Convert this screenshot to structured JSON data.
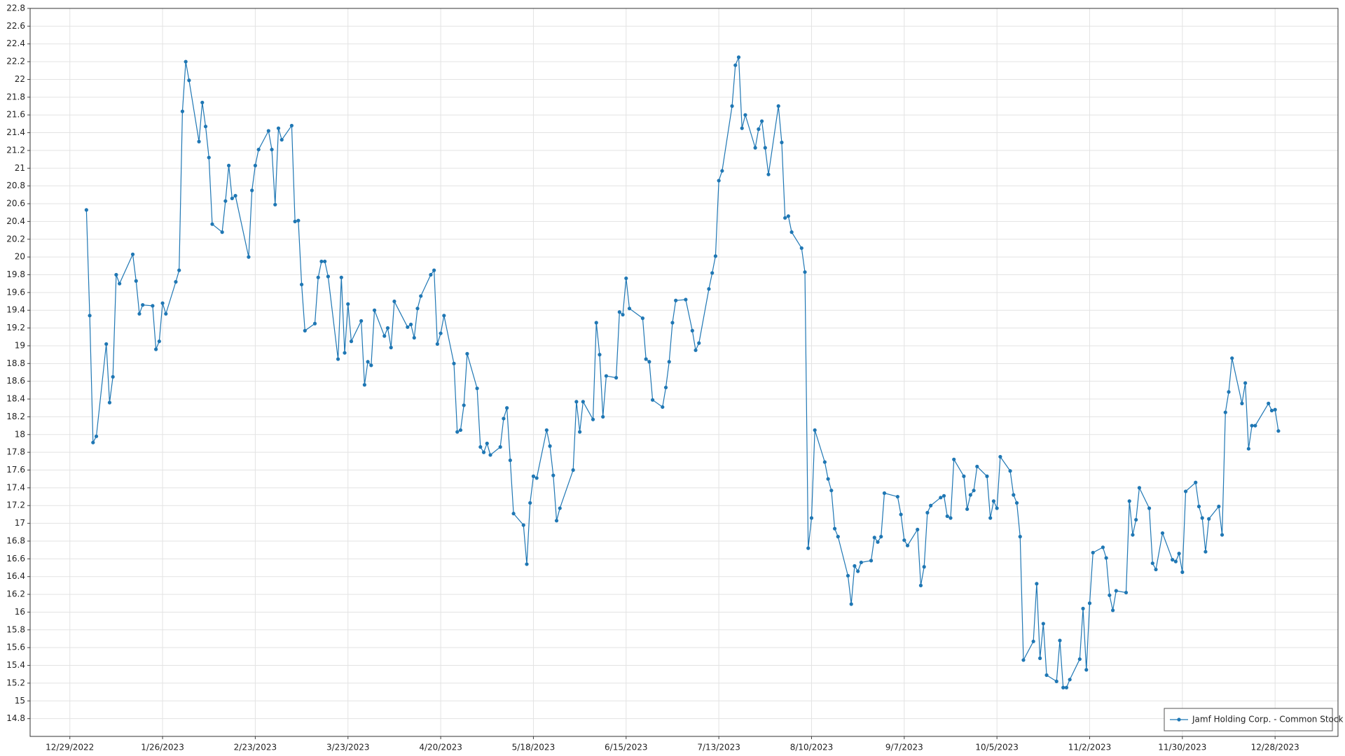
{
  "chart_data": {
    "type": "line",
    "series": [
      {
        "name": "Jamf Holding Corp. - Common Stock",
        "color": "#1f77b4",
        "x": [
          "1/3/2023",
          "1/4/2023",
          "1/5/2023",
          "1/6/2023",
          "1/9/2023",
          "1/10/2023",
          "1/11/2023",
          "1/12/2023",
          "1/13/2023",
          "1/17/2023",
          "1/18/2023",
          "1/19/2023",
          "1/20/2023",
          "1/23/2023",
          "1/24/2023",
          "1/25/2023",
          "1/26/2023",
          "1/27/2023",
          "1/30/2023",
          "1/31/2023",
          "2/1/2023",
          "2/2/2023",
          "2/3/2023",
          "2/6/2023",
          "2/7/2023",
          "2/8/2023",
          "2/9/2023",
          "2/10/2023",
          "2/13/2023",
          "2/14/2023",
          "2/15/2023",
          "2/16/2023",
          "2/17/2023",
          "2/21/2023",
          "2/22/2023",
          "2/23/2023",
          "2/24/2023",
          "2/27/2023",
          "2/28/2023",
          "3/1/2023",
          "3/2/2023",
          "3/3/2023",
          "3/6/2023",
          "3/7/2023",
          "3/8/2023",
          "3/9/2023",
          "3/10/2023",
          "3/13/2023",
          "3/14/2023",
          "3/15/2023",
          "3/16/2023",
          "3/17/2023",
          "3/20/2023",
          "3/21/2023",
          "3/22/2023",
          "3/23/2023",
          "3/24/2023",
          "3/27/2023",
          "3/28/2023",
          "3/29/2023",
          "3/30/2023",
          "3/31/2023",
          "4/3/2023",
          "4/4/2023",
          "4/5/2023",
          "4/6/2023",
          "4/10/2023",
          "4/11/2023",
          "4/12/2023",
          "4/13/2023",
          "4/14/2023",
          "4/17/2023",
          "4/18/2023",
          "4/19/2023",
          "4/20/2023",
          "4/21/2023",
          "4/24/2023",
          "4/25/2023",
          "4/26/2023",
          "4/27/2023",
          "4/28/2023",
          "5/1/2023",
          "5/2/2023",
          "5/3/2023",
          "5/4/2023",
          "5/5/2023",
          "5/8/2023",
          "5/9/2023",
          "5/10/2023",
          "5/11/2023",
          "5/12/2023",
          "5/15/2023",
          "5/16/2023",
          "5/17/2023",
          "5/18/2023",
          "5/19/2023",
          "5/22/2023",
          "5/23/2023",
          "5/24/2023",
          "5/25/2023",
          "5/26/2023",
          "5/30/2023",
          "5/31/2023",
          "6/1/2023",
          "6/2/2023",
          "6/5/2023",
          "6/6/2023",
          "6/7/2023",
          "6/8/2023",
          "6/9/2023",
          "6/12/2023",
          "6/13/2023",
          "6/14/2023",
          "6/15/2023",
          "6/16/2023",
          "6/20/2023",
          "6/21/2023",
          "6/22/2023",
          "6/23/2023",
          "6/26/2023",
          "6/27/2023",
          "6/28/2023",
          "6/29/2023",
          "6/30/2023",
          "7/3/2023",
          "7/5/2023",
          "7/6/2023",
          "7/7/2023",
          "7/10/2023",
          "7/11/2023",
          "7/12/2023",
          "7/13/2023",
          "7/14/2023",
          "7/17/2023",
          "7/18/2023",
          "7/19/2023",
          "7/20/2023",
          "7/21/2023",
          "7/24/2023",
          "7/25/2023",
          "7/26/2023",
          "7/27/2023",
          "7/28/2023",
          "7/31/2023",
          "8/1/2023",
          "8/2/2023",
          "8/3/2023",
          "8/4/2023",
          "8/7/2023",
          "8/8/2023",
          "8/9/2023",
          "8/10/2023",
          "8/11/2023",
          "8/14/2023",
          "8/15/2023",
          "8/16/2023",
          "8/17/2023",
          "8/18/2023",
          "8/21/2023",
          "8/22/2023",
          "8/23/2023",
          "8/24/2023",
          "8/25/2023",
          "8/28/2023",
          "8/29/2023",
          "8/30/2023",
          "8/31/2023",
          "9/1/2023",
          "9/5/2023",
          "9/6/2023",
          "9/7/2023",
          "9/8/2023",
          "9/11/2023",
          "9/12/2023",
          "9/13/2023",
          "9/14/2023",
          "9/15/2023",
          "9/18/2023",
          "9/19/2023",
          "9/20/2023",
          "9/21/2023",
          "9/22/2023",
          "9/25/2023",
          "9/26/2023",
          "9/27/2023",
          "9/28/2023",
          "9/29/2023",
          "10/2/2023",
          "10/3/2023",
          "10/4/2023",
          "10/5/2023",
          "10/6/2023",
          "10/9/2023",
          "10/10/2023",
          "10/11/2023",
          "10/12/2023",
          "10/13/2023",
          "10/16/2023",
          "10/17/2023",
          "10/18/2023",
          "10/19/2023",
          "10/20/2023",
          "10/23/2023",
          "10/24/2023",
          "10/25/2023",
          "10/26/2023",
          "10/27/2023",
          "10/30/2023",
          "10/31/2023",
          "11/1/2023",
          "11/2/2023",
          "11/3/2023",
          "11/6/2023",
          "11/7/2023",
          "11/8/2023",
          "11/9/2023",
          "11/10/2023",
          "11/13/2023",
          "11/14/2023",
          "11/15/2023",
          "11/16/2023",
          "11/17/2023",
          "11/20/2023",
          "11/21/2023",
          "11/22/2023",
          "11/24/2023",
          "11/27/2023",
          "11/28/2023",
          "11/29/2023",
          "11/30/2023",
          "12/1/2023",
          "12/4/2023",
          "12/5/2023",
          "12/6/2023",
          "12/7/2023",
          "12/8/2023",
          "12/11/2023",
          "12/12/2023",
          "12/13/2023",
          "12/14/2023",
          "12/15/2023",
          "12/18/2023",
          "12/19/2023",
          "12/20/2023",
          "12/21/2023",
          "12/22/2023",
          "12/26/2023",
          "12/27/2023",
          "12/28/2023",
          "12/29/2023"
        ],
        "values": [
          20.53,
          19.34,
          17.91,
          17.98,
          19.02,
          18.36,
          18.65,
          19.8,
          19.7,
          20.03,
          19.73,
          19.36,
          19.46,
          19.45,
          18.96,
          19.05,
          19.48,
          19.36,
          19.72,
          19.85,
          21.64,
          22.2,
          21.99,
          21.3,
          21.74,
          21.47,
          21.12,
          20.37,
          20.28,
          20.63,
          21.03,
          20.66,
          20.69,
          20.0,
          20.75,
          21.03,
          21.21,
          21.42,
          21.21,
          20.59,
          21.45,
          21.32,
          21.48,
          20.4,
          20.41,
          19.69,
          19.17,
          19.25,
          19.77,
          19.95,
          19.95,
          19.78,
          18.85,
          19.77,
          18.92,
          19.47,
          19.05,
          19.28,
          18.56,
          18.82,
          18.78,
          19.4,
          19.11,
          19.2,
          18.98,
          19.5,
          19.21,
          19.24,
          19.09,
          19.42,
          19.56,
          19.8,
          19.85,
          19.02,
          19.14,
          19.34,
          18.8,
          18.03,
          18.05,
          18.33,
          18.91,
          18.52,
          17.86,
          17.8,
          17.9,
          17.77,
          17.86,
          18.18,
          18.3,
          17.71,
          17.11,
          16.98,
          16.54,
          17.23,
          17.53,
          17.51,
          18.05,
          17.87,
          17.54,
          17.03,
          17.17,
          17.6,
          18.37,
          18.03,
          18.37,
          18.17,
          19.26,
          18.9,
          18.2,
          18.66,
          18.64,
          19.38,
          19.35,
          19.76,
          19.42,
          19.31,
          18.85,
          18.82,
          18.39,
          18.31,
          18.53,
          18.82,
          19.26,
          19.51,
          19.52,
          19.17,
          18.95,
          19.03,
          19.64,
          19.82,
          20.01,
          20.86,
          20.97,
          21.7,
          22.16,
          22.25,
          21.45,
          21.6,
          21.23,
          21.44,
          21.53,
          21.23,
          20.93,
          21.7,
          21.29,
          20.44,
          20.46,
          20.28,
          20.1,
          19.83,
          16.72,
          17.06,
          18.05,
          17.69,
          17.5,
          17.37,
          16.94,
          16.85,
          16.41,
          16.09,
          16.52,
          16.46,
          16.56,
          16.58,
          16.84,
          16.79,
          16.85,
          17.34,
          17.3,
          17.1,
          16.81,
          16.75,
          16.93,
          16.3,
          16.51,
          17.12,
          17.2,
          17.29,
          17.31,
          17.08,
          17.06,
          17.72,
          17.53,
          17.16,
          17.32,
          17.37,
          17.64,
          17.53,
          17.06,
          17.25,
          17.17,
          17.75,
          17.59,
          17.32,
          17.23,
          16.85,
          15.46,
          15.67,
          16.32,
          15.48,
          15.87,
          15.29,
          15.22,
          15.68,
          15.15,
          15.15,
          15.24,
          15.47,
          16.04,
          15.35,
          16.1,
          16.67,
          16.73,
          16.61,
          16.19,
          16.02,
          16.24,
          16.22,
          17.25,
          16.87,
          17.04,
          17.4,
          17.17,
          16.55,
          16.48,
          16.89,
          16.59,
          16.57,
          16.66,
          16.45,
          17.36,
          17.46,
          17.19,
          17.06,
          16.68,
          17.05,
          17.19,
          16.87,
          18.25,
          18.48,
          18.86,
          18.35,
          18.58,
          17.84,
          18.1,
          18.1,
          18.35,
          18.27,
          18.28,
          18.04
        ]
      }
    ],
    "xlim": [
      "12/17/2022",
      "1/16/2024"
    ],
    "xticks": [
      "12/29/2022",
      "1/26/2023",
      "2/23/2023",
      "3/23/2023",
      "4/20/2023",
      "5/18/2023",
      "6/15/2023",
      "7/13/2023",
      "8/10/2023",
      "9/7/2023",
      "10/5/2023",
      "11/2/2023",
      "11/30/2023",
      "12/28/2023"
    ],
    "ylim": [
      14.6,
      22.8
    ],
    "yticks": [
      14.8,
      15,
      15.2,
      15.4,
      15.6,
      15.8,
      16,
      16.2,
      16.4,
      16.6,
      16.8,
      17,
      17.2,
      17.4,
      17.6,
      17.8,
      18,
      18.2,
      18.4,
      18.6,
      18.8,
      19,
      19.2,
      19.4,
      19.6,
      19.8,
      20,
      20.2,
      20.4,
      20.6,
      20.8,
      21,
      21.2,
      21.4,
      21.6,
      21.8,
      22,
      22.2,
      22.4,
      22.6,
      22.8
    ],
    "grid": true,
    "markers": true,
    "legend": "lower right"
  }
}
